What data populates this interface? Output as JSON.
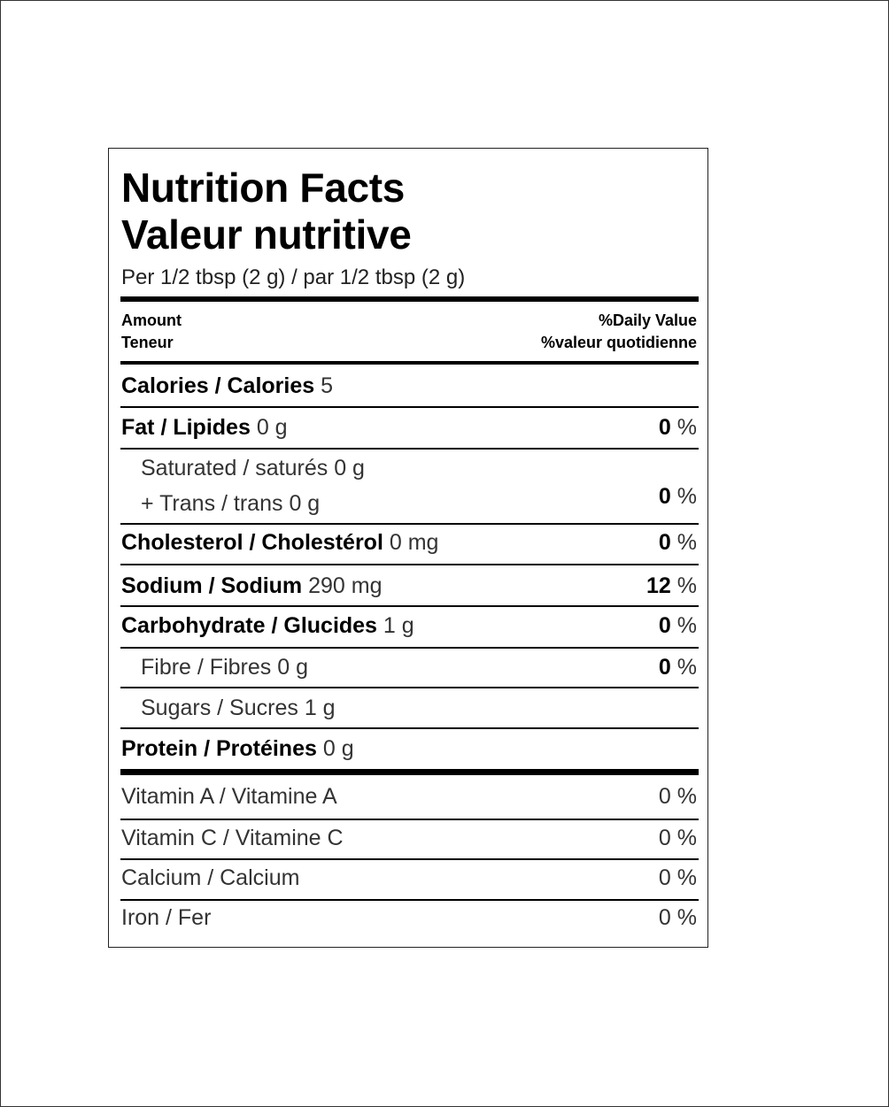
{
  "label": {
    "title_en": "Nutrition Facts",
    "title_fr": "Valeur nutritive",
    "serving": "Per 1/2 tbsp (2 g) / par 1/2 tbsp (2 g)",
    "amount_en": "Amount",
    "amount_fr": "Teneur",
    "dv_en": "%Daily Value",
    "dv_fr": "%valeur quotidienne",
    "calories": {
      "label": "Calories / Calories",
      "amount": "5"
    },
    "fat": {
      "label": "Fat / Lipides",
      "amount": "0 g",
      "dv": "0"
    },
    "saturated": {
      "label": "Saturated / saturés",
      "amount": "0 g"
    },
    "trans": {
      "label": "+ Trans / trans",
      "amount": "0 g",
      "dv": "0"
    },
    "cholesterol": {
      "label": "Cholesterol / Cholestérol",
      "amount": "0 mg",
      "dv": "0"
    },
    "sodium": {
      "label": "Sodium / Sodium",
      "amount": "290 mg",
      "dv": "12"
    },
    "carbohydrate": {
      "label": "Carbohydrate / Glucides",
      "amount": "1 g",
      "dv": "0"
    },
    "fibre": {
      "label": "Fibre / Fibres",
      "amount": "0 g",
      "dv": "0"
    },
    "sugars": {
      "label": "Sugars / Sucres",
      "amount": "1 g"
    },
    "protein": {
      "label": "Protein / Protéines",
      "amount": "0 g"
    },
    "percent_sign": "%",
    "vitamins": [
      {
        "label": "Vitamin A / Vitamine A",
        "value": "0 %"
      },
      {
        "label": "Vitamin C / Vitamine C",
        "value": "0 %"
      },
      {
        "label": "Calcium / Calcium",
        "value": "0 %"
      },
      {
        "label": "Iron / Fer",
        "value": "0 %"
      }
    ]
  }
}
